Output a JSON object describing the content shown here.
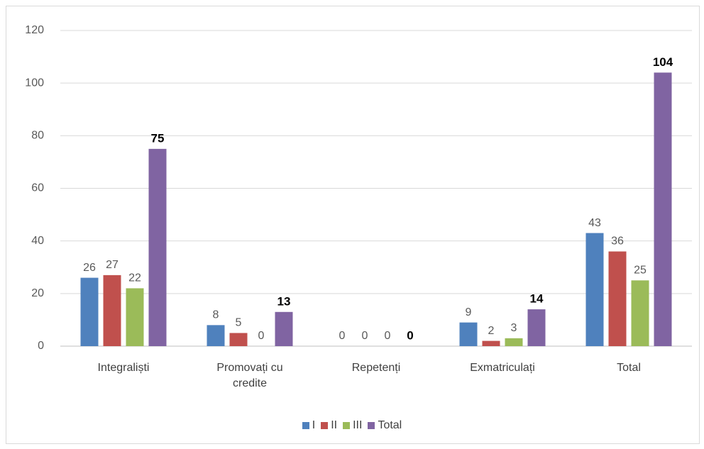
{
  "chart_data": {
    "type": "bar",
    "categories": [
      "Integraliști",
      "Promovați cu credite",
      "Repetenți",
      "Exmatriculați",
      "Total"
    ],
    "series": [
      {
        "name": "I",
        "color": "#4f81bd",
        "values": [
          26,
          8,
          0,
          9,
          43
        ]
      },
      {
        "name": "II",
        "color": "#c0504d",
        "values": [
          27,
          5,
          0,
          2,
          36
        ]
      },
      {
        "name": "III",
        "color": "#9bbb59",
        "values": [
          22,
          0,
          0,
          3,
          25
        ]
      },
      {
        "name": "Total",
        "color": "#8064a2",
        "values": [
          75,
          13,
          0,
          14,
          104
        ],
        "bold_labels": true
      }
    ],
    "ylim": [
      0,
      120
    ],
    "yticks": [
      0,
      20,
      40,
      60,
      80,
      100,
      120
    ],
    "grid": true,
    "legend": "bottom"
  }
}
